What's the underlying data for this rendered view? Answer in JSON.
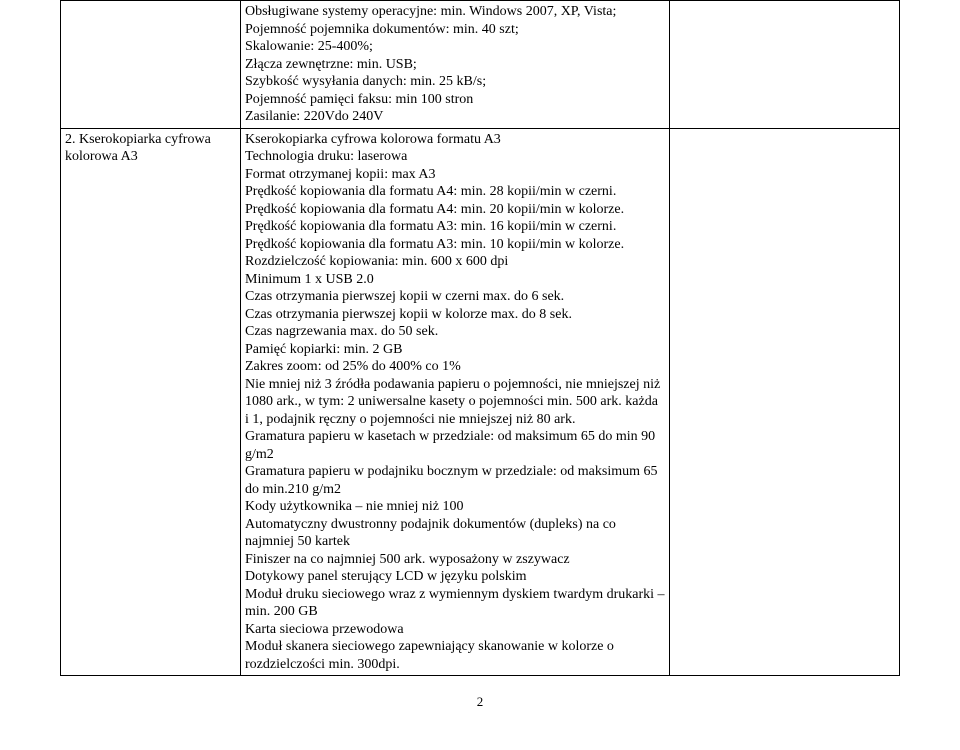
{
  "row1": {
    "col1": "",
    "col2_lines": [
      "Obsługiwane systemy operacyjne: min. Windows 2007, XP, Vista;",
      "Pojemność pojemnika dokumentów: min. 40 szt;",
      "Skalowanie: 25-400%;",
      "Złącza zewnętrzne: min. USB;",
      "Szybkość wysyłania danych: min. 25 kB/s;",
      "Pojemność pamięci faksu: min 100 stron",
      "Zasilanie: 220Vdo 240V"
    ],
    "col3": ""
  },
  "row2": {
    "col1_lines": [
      "2. Kserokopiarka cyfrowa kolorowa A3"
    ],
    "col2_lines": [
      "Kserokopiarka cyfrowa kolorowa  formatu A3",
      "Technologia druku: laserowa",
      "Format otrzymanej kopii: max A3",
      "Prędkość kopiowania dla formatu A4: min. 28 kopii/min w czerni.",
      "Prędkość kopiowania dla formatu A4: min. 20 kopii/min w kolorze.",
      "Prędkość kopiowania dla formatu A3: min. 16 kopii/min w czerni.",
      "Prędkość kopiowania dla formatu A3: min. 10 kopii/min w kolorze.",
      "Rozdzielczość kopiowania: min. 600 x 600 dpi",
      "Minimum 1 x USB 2.0",
      "Czas otrzymania pierwszej kopii w czerni max. do 6 sek.",
      "Czas otrzymania pierwszej kopii w kolorze max. do 8 sek.",
      "Czas nagrzewania max. do 50 sek.",
      "Pamięć kopiarki: min. 2 GB",
      "Zakres zoom: od 25% do 400% co 1%",
      "Nie mniej niż 3 źródła podawania papieru o pojemności, nie mniejszej niż 1080 ark., w tym: 2 uniwersalne kasety o pojemności min. 500 ark. każda i 1, podajnik ręczny o pojemności nie mniejszej niż 80 ark.",
      "Gramatura papieru w kasetach w przedziale: od maksimum 65 do min 90 g/m2",
      "Gramatura papieru w podajniku bocznym w przedziale: od maksimum 65 do min.210 g/m2",
      "Kody użytkownika – nie mniej niż 100",
      "Automatyczny dwustronny podajnik dokumentów (dupleks) na co najmniej 50 kartek",
      "Finiszer na co najmniej 500 ark. wyposażony w zszywacz",
      "Dotykowy panel sterujący LCD w języku polskim",
      "Moduł druku sieciowego wraz z wymiennym dyskiem twardym drukarki – min. 200 GB",
      "Karta sieciowa przewodowa",
      "Moduł skanera sieciowego zapewniający skanowanie w kolorze o rozdzielczości min. 300dpi."
    ],
    "col3": ""
  },
  "page_number": "2"
}
